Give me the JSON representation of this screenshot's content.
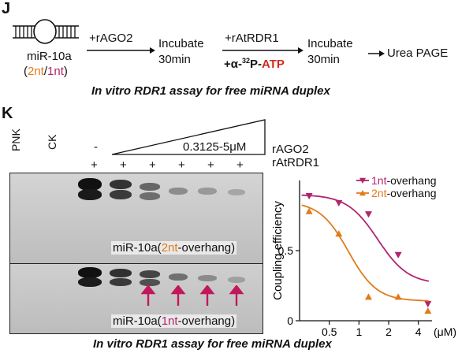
{
  "panel_j": {
    "letter": "J",
    "mirna_label": "miR-10a",
    "overhang_2nt": "2nt",
    "overhang_sep": "/",
    "overhang_1nt": "1nt",
    "paren_open": "(",
    "paren_close": ")",
    "step1": "+rAGO2",
    "incubate1": "Incubate",
    "time1": "30min",
    "step2": "+rAtRDR1",
    "step2b_prefix": "+α-",
    "step2b_sup": "32",
    "step2b_mid": "P-",
    "step2b_atp": "ATP",
    "incubate2": "Incubate",
    "time2": "30min",
    "final": "Urea PAGE",
    "caption": "In vitro RDR1 assay for free miRNA duplex"
  },
  "panel_k": {
    "letter": "K",
    "lanes": [
      "PNK",
      "CK"
    ],
    "minus_sign": "-",
    "range_label": "0.3125-5μM",
    "row_rago2": "rAGO2",
    "row_ratrdr1": "rAtRDR1",
    "plus_sign": "+",
    "gel_top_label_prefix": "miR-10a(",
    "gel_top_label_nt": "2nt",
    "gel_top_label_suffix": "-overhang)",
    "gel_bottom_label_prefix": "miR-10a(",
    "gel_bottom_label_nt": "1nt",
    "gel_bottom_label_suffix": "-overhang)",
    "caption": "In vitro RDR1 assay for free miRNA duplex"
  },
  "colors": {
    "orange": "#e07b1a",
    "magenta": "#b0246e",
    "atp_red": "#d42a1f",
    "arrow": "#c2185b"
  },
  "chart_data": {
    "type": "scatter",
    "xlabel": "",
    "ylabel": "Coupling efficiency",
    "x_unit": "(μM)",
    "xscale": "log",
    "xticks": [
      0.5,
      1,
      2,
      4
    ],
    "yticks": [
      0,
      0.5
    ],
    "xlim": [
      0.25,
      5.5
    ],
    "ylim": [
      0,
      1.0
    ],
    "legend_position": "top-right",
    "series": [
      {
        "name": "1nt-overhang",
        "prefix": "1nt",
        "suffix": "-overhang",
        "color": "#b0246e",
        "marker": "triangle-down",
        "x": [
          0.3125,
          0.625,
          1.25,
          2.5,
          5
        ],
        "y": [
          0.89,
          0.84,
          0.76,
          0.47,
          0.12
        ],
        "fit": {
          "top": 0.9,
          "bottom": 0.26,
          "ec50": 1.55,
          "hill": 2.8
        }
      },
      {
        "name": "2nt-overhang",
        "prefix": "2nt",
        "suffix": "-overhang",
        "color": "#e07b1a",
        "marker": "triangle-up",
        "x": [
          0.3125,
          0.625,
          1.25,
          2.5,
          5
        ],
        "y": [
          0.78,
          0.62,
          0.17,
          0.17,
          0.07
        ],
        "fit": {
          "top": 0.85,
          "bottom": 0.14,
          "ec50": 0.78,
          "hill": 3.0
        }
      }
    ]
  }
}
